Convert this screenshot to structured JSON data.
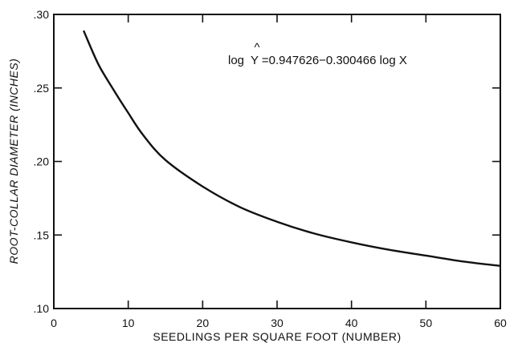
{
  "chart_data": {
    "type": "line",
    "title": "",
    "xlabel": "SEEDLINGS PER SQUARE FOOT (NUMBER)",
    "ylabel": "ROOT-COLLAR DIAMETER (INCHES)",
    "xlim": [
      0,
      60
    ],
    "ylim": [
      0.1,
      0.3
    ],
    "x_ticks": [
      0,
      10,
      20,
      30,
      40,
      50,
      60
    ],
    "x_tick_labels": [
      "0",
      "10",
      "20",
      "30",
      "40",
      "50",
      "60"
    ],
    "y_ticks": [
      0.1,
      0.15,
      0.2,
      0.25,
      0.3
    ],
    "y_tick_labels": [
      ".10",
      ".15",
      ".20",
      ".25",
      ".30"
    ],
    "grid": false,
    "annotation": {
      "prefix": "log",
      "hat": "^",
      "symbol": "Y",
      "rest": "=0.947626−0.300466 log X"
    },
    "series": [
      {
        "x": [
          4,
          6,
          8,
          10,
          12,
          15,
          20,
          25,
          30,
          35,
          40,
          45,
          50,
          55,
          60
        ],
        "y": [
          0.289,
          0.266,
          0.249,
          0.233,
          0.218,
          0.201,
          0.183,
          0.169,
          0.159,
          0.151,
          0.145,
          0.14,
          0.136,
          0.132,
          0.129
        ]
      }
    ]
  }
}
